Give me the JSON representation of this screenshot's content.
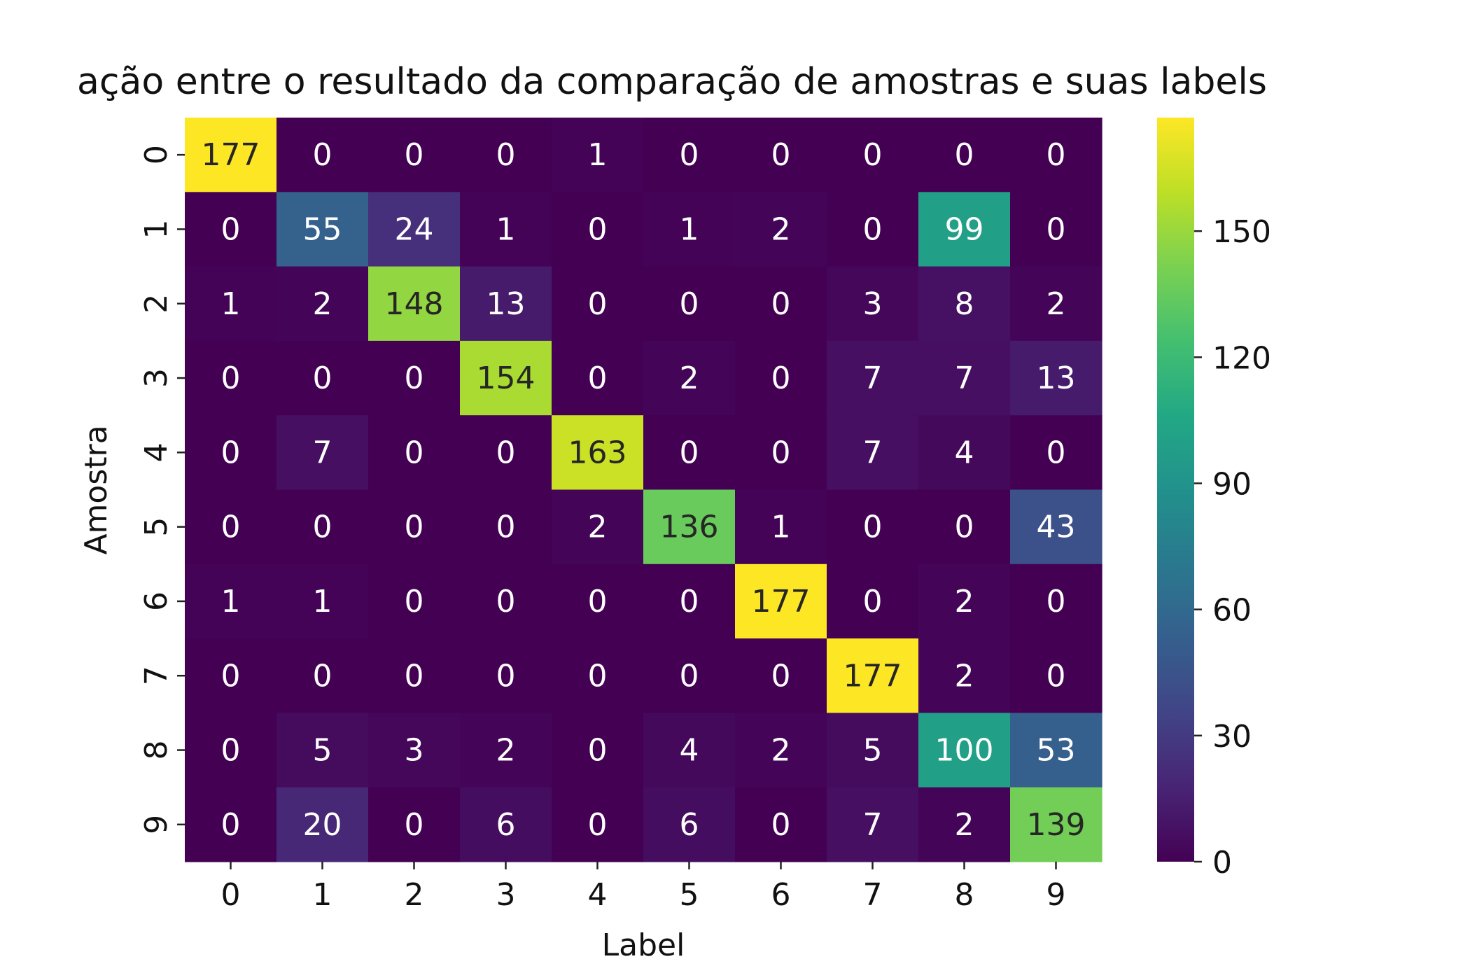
{
  "chart_data": {
    "type": "heatmap",
    "title": "ação entre o resultado da comparação de amostras e suas labels",
    "xlabel": "Label",
    "ylabel": "Amostra",
    "x_categories": [
      "0",
      "1",
      "2",
      "3",
      "4",
      "5",
      "6",
      "7",
      "8",
      "9"
    ],
    "y_categories": [
      "0",
      "1",
      "2",
      "3",
      "4",
      "5",
      "6",
      "7",
      "8",
      "9"
    ],
    "values": [
      [
        177,
        0,
        0,
        0,
        1,
        0,
        0,
        0,
        0,
        0
      ],
      [
        0,
        55,
        24,
        1,
        0,
        1,
        2,
        0,
        99,
        0
      ],
      [
        1,
        2,
        148,
        13,
        0,
        0,
        0,
        3,
        8,
        2
      ],
      [
        0,
        0,
        0,
        154,
        0,
        2,
        0,
        7,
        7,
        13
      ],
      [
        0,
        7,
        0,
        0,
        163,
        0,
        0,
        7,
        4,
        0
      ],
      [
        0,
        0,
        0,
        0,
        2,
        136,
        1,
        0,
        0,
        43
      ],
      [
        1,
        1,
        0,
        0,
        0,
        0,
        177,
        0,
        2,
        0
      ],
      [
        0,
        0,
        0,
        0,
        0,
        0,
        0,
        177,
        2,
        0
      ],
      [
        0,
        5,
        3,
        2,
        0,
        4,
        2,
        5,
        100,
        53
      ],
      [
        0,
        20,
        0,
        6,
        0,
        6,
        0,
        7,
        2,
        139
      ]
    ],
    "colormap": "viridis",
    "vmin": 0,
    "vmax": 177,
    "colorbar_ticks": [
      0,
      30,
      60,
      90,
      120,
      150
    ]
  }
}
